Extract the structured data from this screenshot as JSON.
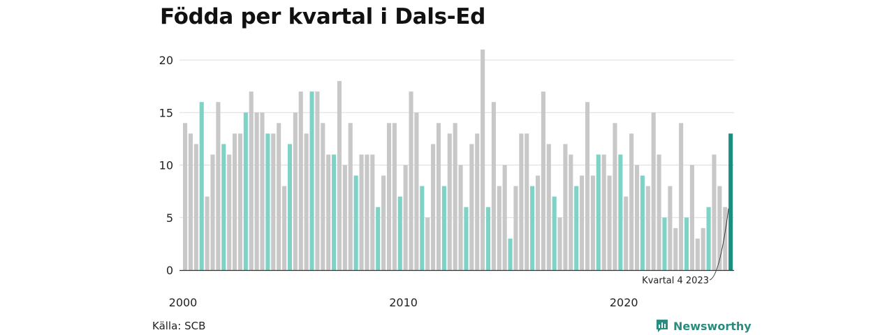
{
  "title": "Födda per kvartal i Dals-Ed",
  "source": "Källa: SCB",
  "brand": {
    "name": "Newsworthy",
    "icon": "newsworthy-logo-icon"
  },
  "colors": {
    "bar": "#c8c8c8",
    "q4": "#7fd3c6",
    "last": "#1a8f80",
    "grid": "#dcdcdc",
    "axis": "#333333"
  },
  "chart_data": {
    "type": "bar",
    "title": "Födda per kvartal i Dals-Ed",
    "xlabel": "",
    "ylabel": "",
    "ylim": [
      0,
      21
    ],
    "yticks": [
      0,
      5,
      10,
      15,
      20
    ],
    "xtick_labels": [
      "2000",
      "2010",
      "2020"
    ],
    "grid": true,
    "start": {
      "year": 2000,
      "quarter": 1
    },
    "highlight": "Kvartal 4 2023",
    "values": [
      14,
      13,
      12,
      16,
      7,
      11,
      16,
      12,
      11,
      13,
      13,
      15,
      17,
      15,
      15,
      13,
      13,
      14,
      8,
      12,
      15,
      17,
      13,
      17,
      17,
      14,
      11,
      11,
      18,
      10,
      14,
      9,
      11,
      11,
      11,
      6,
      9,
      14,
      14,
      7,
      10,
      17,
      15,
      8,
      5,
      12,
      14,
      8,
      13,
      14,
      10,
      6,
      12,
      13,
      21,
      6,
      16,
      8,
      10,
      3,
      8,
      13,
      13,
      8,
      9,
      17,
      12,
      7,
      5,
      12,
      11,
      8,
      9,
      16,
      9,
      11,
      11,
      9,
      14,
      11,
      7,
      13,
      10,
      9,
      8,
      15,
      11,
      5,
      8,
      4,
      14,
      5,
      10,
      3,
      4,
      6,
      11,
      8,
      6,
      13
    ]
  },
  "annotation": "Kvartal 4 2023"
}
